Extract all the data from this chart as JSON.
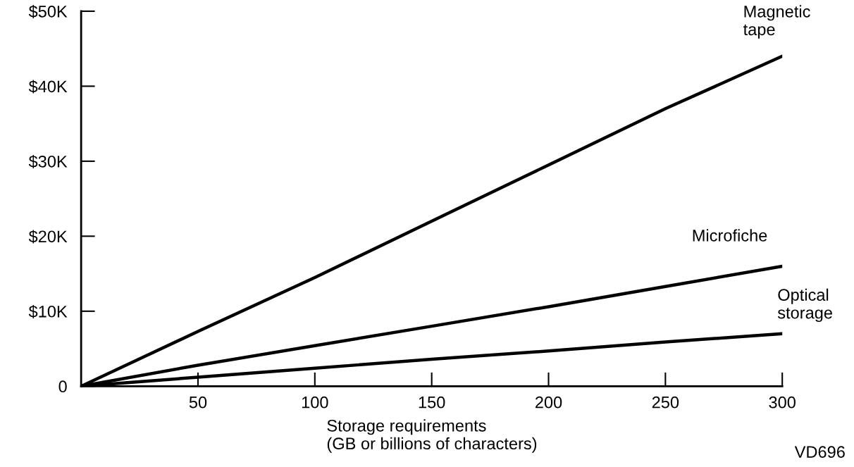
{
  "chart_data": {
    "type": "line",
    "xlabel": "Storage requirements\n(GB or billions of characters)",
    "x": [
      0,
      50,
      100,
      150,
      200,
      250,
      300
    ],
    "series": [
      {
        "name": "Magnetic\ntape",
        "color": "#000000",
        "values": [
          0,
          7.3,
          14.5,
          22,
          29.5,
          37,
          44
        ]
      },
      {
        "name": "Microfiche",
        "color": "#000000",
        "values": [
          0,
          2.8,
          5.4,
          8,
          10.6,
          13.3,
          16
        ]
      },
      {
        "name": "Optical\nstorage",
        "color": "#000000",
        "values": [
          0,
          1.2,
          2.4,
          3.6,
          4.7,
          5.9,
          7
        ]
      }
    ],
    "xlim": [
      0,
      300
    ],
    "xticks": [
      50,
      100,
      150,
      200,
      250,
      300
    ],
    "ylim": [
      0,
      50
    ],
    "yticks": [
      {
        "value": 0,
        "label": "0"
      },
      {
        "value": 10,
        "label": "$10K"
      },
      {
        "value": 20,
        "label": "$20K"
      },
      {
        "value": 30,
        "label": "$30K"
      },
      {
        "value": 40,
        "label": "$40K"
      },
      {
        "value": 50,
        "label": "$50K"
      }
    ],
    "annotations": [
      "VD696"
    ],
    "grid": false,
    "legend": false,
    "marker": "none",
    "line_style": "solid"
  }
}
